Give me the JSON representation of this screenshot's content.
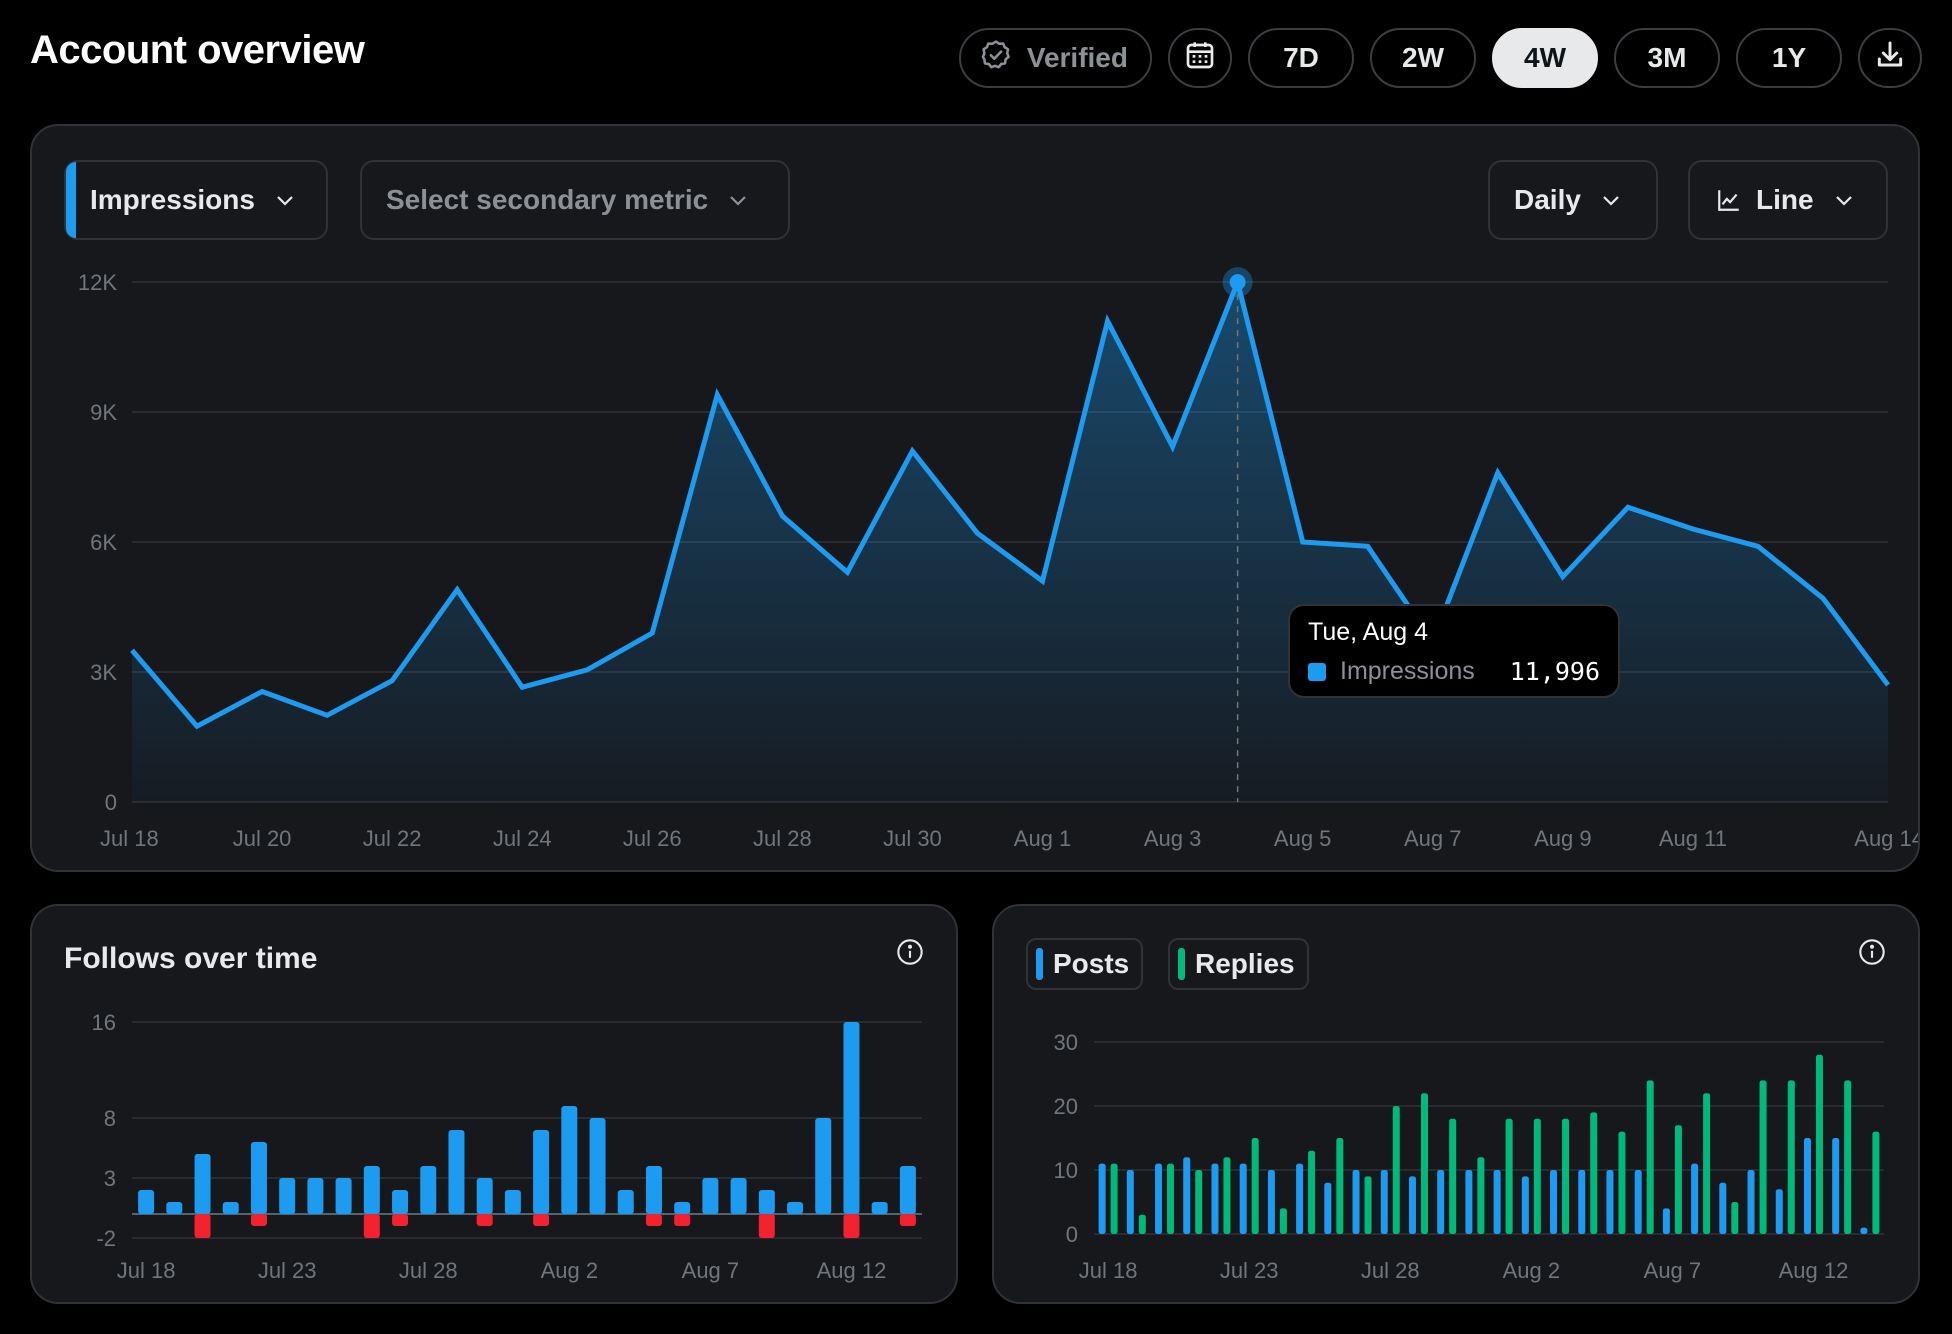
{
  "header": {
    "title": "Account overview",
    "verified_label": "Verified",
    "ranges": [
      "7D",
      "2W",
      "4W",
      "3M",
      "1Y"
    ],
    "active_range": "4W",
    "calendar_icon": "calendar-icon",
    "download_icon": "download-icon"
  },
  "main": {
    "primary_metric": "Impressions",
    "secondary_placeholder": "Select secondary metric",
    "interval": "Daily",
    "chart_type_label": "Line",
    "tooltip": {
      "date": "Tue, Aug 4",
      "series": "Impressions",
      "value": "11,996"
    }
  },
  "follows": {
    "title": "Follows over time"
  },
  "posts_replies": {
    "posts_label": "Posts",
    "replies_label": "Replies"
  },
  "colors": {
    "accent": "#1d9bf0",
    "positive": "#1d9bf0",
    "negative": "#f4212e",
    "replies": "#00ba7c",
    "panel": "#16181c"
  },
  "chart_data": [
    {
      "type": "area",
      "series": [
        {
          "name": "Impressions",
          "values": [
            3500,
            1750,
            2550,
            2000,
            2800,
            4900,
            2650,
            3050,
            3900,
            9400,
            6600,
            5300,
            8100,
            6200,
            5100,
            11100,
            8200,
            11996,
            6000,
            5900,
            3700,
            7600,
            5200,
            6800,
            6300,
            5900,
            4700,
            2700
          ]
        }
      ],
      "x": [
        "Jul 18",
        "Jul 19",
        "Jul 20",
        "Jul 21",
        "Jul 22",
        "Jul 23",
        "Jul 24",
        "Jul 25",
        "Jul 26",
        "Jul 27",
        "Jul 28",
        "Jul 29",
        "Jul 30",
        "Jul 31",
        "Aug 1",
        "Aug 2",
        "Aug 3",
        "Aug 4",
        "Aug 5",
        "Aug 6",
        "Aug 7",
        "Aug 8",
        "Aug 9",
        "Aug 10",
        "Aug 11",
        "Aug 12",
        "Aug 13",
        "Aug 14"
      ],
      "x_tick_labels": [
        "Jul 18",
        "Jul 20",
        "Jul 22",
        "Jul 24",
        "Jul 26",
        "Jul 28",
        "Jul 30",
        "Aug 1",
        "Aug 3",
        "Aug 5",
        "Aug 7",
        "Aug 9",
        "Aug 11",
        "Aug 14"
      ],
      "y_tick_labels": [
        "12K",
        "9K",
        "6K",
        "3K",
        "0"
      ],
      "ylim": [
        0,
        12000
      ],
      "grid": true,
      "highlight": "Aug 4"
    },
    {
      "type": "bar",
      "x": [
        "Jul 18",
        "Jul 19",
        "Jul 20",
        "Jul 21",
        "Jul 22",
        "Jul 23",
        "Jul 24",
        "Jul 25",
        "Jul 26",
        "Jul 27",
        "Jul 28",
        "Jul 29",
        "Jul 30",
        "Jul 31",
        "Aug 1",
        "Aug 2",
        "Aug 3",
        "Aug 4",
        "Aug 5",
        "Aug 6",
        "Aug 7",
        "Aug 8",
        "Aug 9",
        "Aug 10",
        "Aug 11",
        "Aug 12",
        "Aug 13",
        "Aug 14"
      ],
      "series": [
        {
          "values": [
            2,
            1,
            5,
            1,
            6,
            3,
            3,
            3,
            4,
            2,
            4,
            7,
            3,
            2,
            7,
            9,
            8,
            2,
            4,
            1,
            3,
            3,
            2,
            1,
            8,
            16,
            1,
            4
          ]
        },
        {
          "values": [
            0,
            0,
            -2,
            0,
            -1,
            0,
            0,
            0,
            -2,
            -1,
            0,
            0,
            -1,
            0,
            -1,
            0,
            0,
            0,
            -1,
            -1,
            0,
            0,
            -2,
            0,
            0,
            -2,
            0,
            -1
          ]
        }
      ],
      "x_tick_labels": [
        "Jul 18",
        "Jul 23",
        "Jul 28",
        "Aug 2",
        "Aug 7",
        "Aug 12"
      ],
      "y_tick_labels": [
        "16",
        "8",
        "3",
        "-2"
      ],
      "ylim": [
        -2,
        16
      ],
      "grid": true
    },
    {
      "type": "bar",
      "x": [
        "Jul 18",
        "Jul 19",
        "Jul 20",
        "Jul 21",
        "Jul 22",
        "Jul 23",
        "Jul 24",
        "Jul 25",
        "Jul 26",
        "Jul 27",
        "Jul 28",
        "Jul 29",
        "Jul 30",
        "Jul 31",
        "Aug 1",
        "Aug 2",
        "Aug 3",
        "Aug 4",
        "Aug 5",
        "Aug 6",
        "Aug 7",
        "Aug 8",
        "Aug 9",
        "Aug 10",
        "Aug 11",
        "Aug 12",
        "Aug 13",
        "Aug 14"
      ],
      "series": [
        {
          "name": "Posts",
          "values": [
            11,
            10,
            11,
            12,
            11,
            11,
            10,
            11,
            8,
            10,
            10,
            9,
            10,
            10,
            10,
            9,
            10,
            10,
            10,
            10,
            4,
            11,
            8,
            10,
            7,
            15,
            15,
            1
          ]
        },
        {
          "name": "Replies",
          "values": [
            11,
            3,
            11,
            10,
            12,
            15,
            4,
            13,
            15,
            9,
            20,
            22,
            18,
            12,
            18,
            18,
            18,
            19,
            16,
            24,
            17,
            22,
            5,
            24,
            24,
            28,
            24,
            16
          ]
        }
      ],
      "legend": "top-left",
      "x_tick_labels": [
        "Jul 18",
        "Jul 23",
        "Jul 28",
        "Aug 2",
        "Aug 7",
        "Aug 12"
      ],
      "y_tick_labels": [
        "30",
        "20",
        "10",
        "0"
      ],
      "ylim": [
        0,
        30
      ],
      "grid": true
    }
  ]
}
